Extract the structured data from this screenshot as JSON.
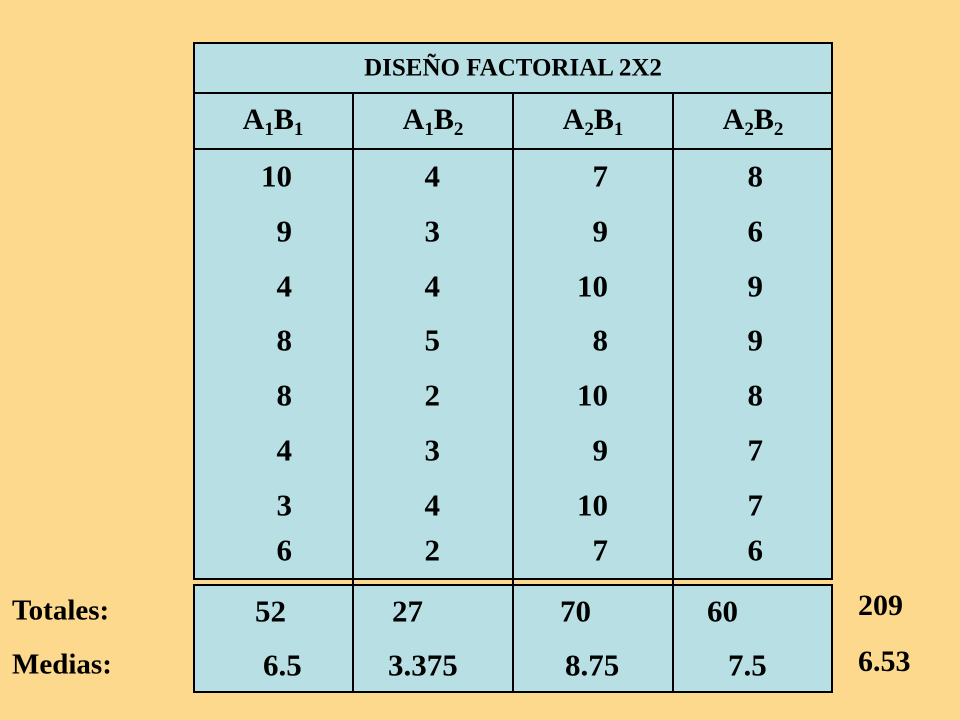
{
  "title": "DISEÑO FACTORIAL 2X2",
  "columns": [
    {
      "header": [
        "A",
        "1",
        "B",
        "1"
      ],
      "values": [
        "10",
        "9",
        "4",
        "8",
        "8",
        "4",
        "3",
        "6"
      ],
      "total": "52",
      "mean": "6.5"
    },
    {
      "header": [
        "A",
        "1",
        "B",
        "2"
      ],
      "values": [
        "4",
        "3",
        "4",
        "5",
        "2",
        "3",
        "4",
        "2"
      ],
      "total": "27",
      "mean": "3.375"
    },
    {
      "header": [
        "A",
        "2",
        "B",
        "1"
      ],
      "values": [
        "7",
        "9",
        "10",
        "8",
        "10",
        "9",
        "10",
        "7"
      ],
      "total": "70",
      "mean": "8.75"
    },
    {
      "header": [
        "A",
        "2",
        "B",
        "2"
      ],
      "values": [
        "8",
        "6",
        "9",
        "9",
        "8",
        "7",
        "7",
        "6"
      ],
      "total": "60",
      "mean": "7.5"
    }
  ],
  "row_labels": {
    "totals": "Totales:",
    "means": "Medias:"
  },
  "grand_total": "209",
  "grand_mean": "6.53"
}
